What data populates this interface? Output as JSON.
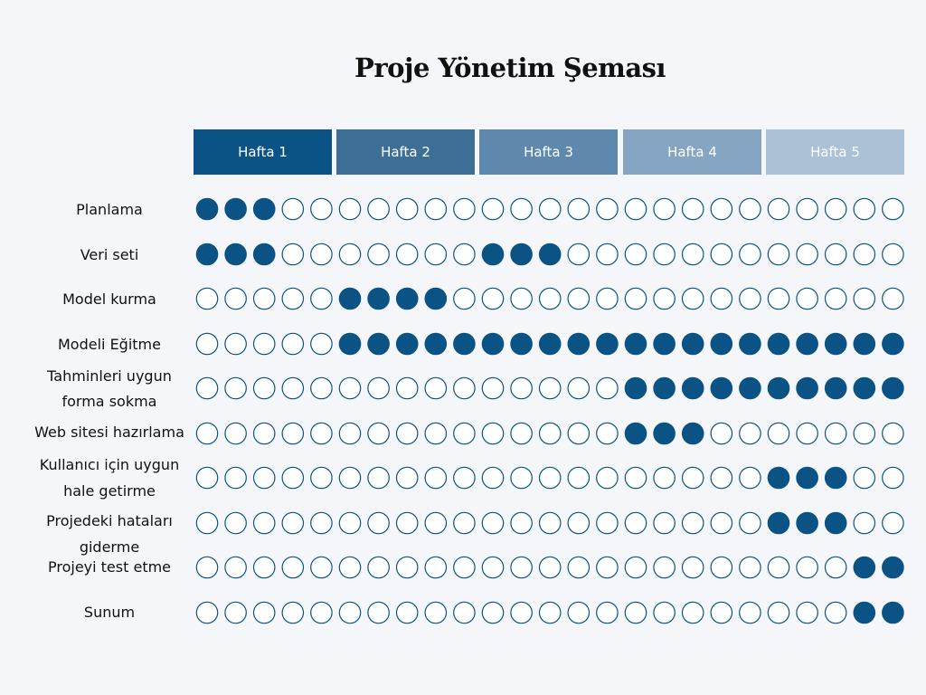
{
  "title": "Proje Yönetim Şeması",
  "colors": {
    "filled": "#0b5384",
    "stroke": "#0b5384",
    "empty_fill": "#ffffff",
    "week_headers": [
      "#0b5384",
      "#3d6f96",
      "#5e89ad",
      "#86a5c2",
      "#aac1d6"
    ]
  },
  "weeks": [
    "Hafta 1",
    "Hafta 2",
    "Hafta 3",
    "Hafta 4",
    "Hafta 5"
  ],
  "chart_data": {
    "type": "table",
    "title": "Proje Yönetim Şeması",
    "columns_per_week": 5,
    "total_columns": 25,
    "tasks": [
      {
        "name": "Planlama",
        "label_lines": [
          "Planlama"
        ],
        "active": [
          0,
          1,
          2
        ]
      },
      {
        "name": "Veri seti",
        "label_lines": [
          "Veri seti"
        ],
        "active": [
          0,
          1,
          2,
          10,
          11,
          12
        ]
      },
      {
        "name": "Model kurma",
        "label_lines": [
          "Model kurma"
        ],
        "active": [
          5,
          6,
          7,
          8
        ]
      },
      {
        "name": "Modeli Eğitme",
        "label_lines": [
          "Modeli Eğitme"
        ],
        "active": [
          5,
          6,
          7,
          8,
          9,
          10,
          11,
          12,
          13,
          14,
          15,
          16,
          17,
          18,
          19,
          20,
          21,
          22,
          23,
          24
        ]
      },
      {
        "name": "Tahminleri uygun forma sokma",
        "label_lines": [
          "Tahminleri uygun",
          "forma sokma"
        ],
        "active": [
          15,
          16,
          17,
          18,
          19,
          20,
          21,
          22,
          23,
          24
        ]
      },
      {
        "name": "Web sitesi hazırlama",
        "label_lines": [
          "Web sitesi hazırlama"
        ],
        "active": [
          15,
          16,
          17
        ]
      },
      {
        "name": "Kullanıcı için uygun hale getirme",
        "label_lines": [
          "Kullanıcı için uygun",
          "hale getirme"
        ],
        "active": [
          20,
          21,
          22
        ]
      },
      {
        "name": "Projedeki hataları giderme",
        "label_lines": [
          "Projedeki hataları",
          "giderme"
        ],
        "active": [
          20,
          21,
          22
        ]
      },
      {
        "name": "Projeyi test etme",
        "label_lines": [
          "Projeyi test etme"
        ],
        "active": [
          23,
          24
        ]
      },
      {
        "name": "Sunum",
        "label_lines": [
          "Sunum"
        ],
        "active": [
          23,
          24
        ]
      }
    ]
  }
}
